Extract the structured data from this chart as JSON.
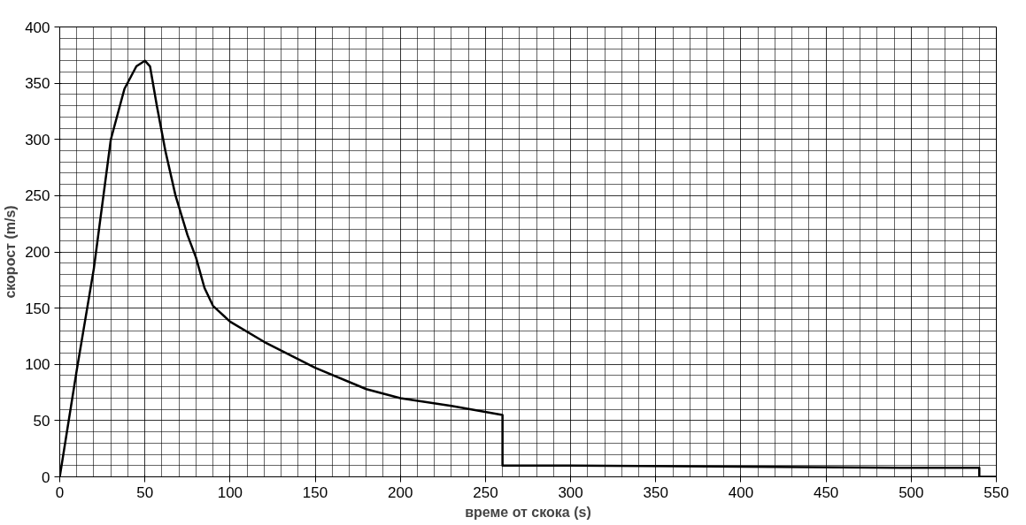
{
  "chart_data": {
    "type": "line",
    "xlabel": "време от скока (s)",
    "ylabel": "скорост (m/s)",
    "xlim": [
      0,
      550
    ],
    "ylim": [
      0,
      400
    ],
    "xticks": [
      0,
      50,
      100,
      150,
      200,
      250,
      300,
      350,
      400,
      450,
      500,
      550
    ],
    "yticks": [
      0,
      50,
      100,
      150,
      200,
      250,
      300,
      350,
      400
    ],
    "grid": true,
    "line_style": "solid",
    "series": [
      {
        "color": "#000000",
        "x": [
          0,
          10,
          20,
          30,
          38,
          45,
          50,
          53,
          57,
          62,
          68,
          75,
          80,
          85,
          90,
          100,
          120,
          150,
          180,
          200,
          230,
          260,
          260,
          300,
          400,
          500,
          540,
          540,
          550
        ],
        "values": [
          0,
          95,
          185,
          300,
          345,
          365,
          370,
          365,
          330,
          290,
          250,
          215,
          195,
          168,
          152,
          138,
          120,
          97,
          78,
          70,
          63,
          55,
          10,
          10,
          9,
          8,
          8,
          0,
          0
        ]
      }
    ]
  }
}
